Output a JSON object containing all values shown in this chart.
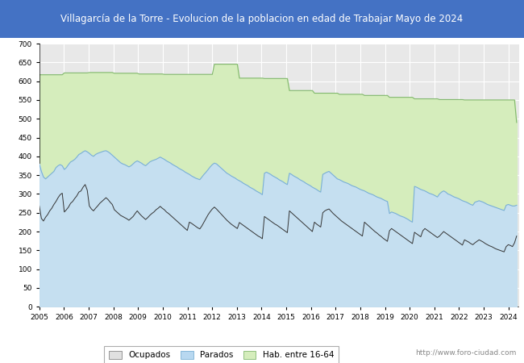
{
  "title": "Villagarcía de la Torre - Evolucion de la poblacion en edad de Trabajar Mayo de 2024",
  "title_bg_color": "#4472C4",
  "title_text_color": "white",
  "ylim": [
    0,
    700
  ],
  "yticks": [
    0,
    50,
    100,
    150,
    200,
    250,
    300,
    350,
    400,
    450,
    500,
    550,
    600,
    650,
    700
  ],
  "plot_bg_color": "#e8e8e8",
  "grid_color": "white",
  "area_hab_color": "#d5edbc",
  "area_hab_edge_color": "#82b86e",
  "area_parados_color": "#c5dff0",
  "area_parados_edge_color": "#7ab0d4",
  "line_ocupados_color": "#333333",
  "watermark": "http://www.foro-ciudad.com",
  "legend_labels": [
    "Ocupados",
    "Parados",
    "Hab. entre 16-64"
  ],
  "legend_colors": [
    "#e0e0e0",
    "#b8d8f0",
    "#d5edbc"
  ],
  "legend_edge_colors": [
    "#888888",
    "#7ab0d4",
    "#82b86e"
  ],
  "hab_data": [
    617,
    617,
    617,
    617,
    617,
    617,
    617,
    617,
    617,
    617,
    617,
    617,
    622,
    622,
    622,
    622,
    622,
    622,
    622,
    622,
    622,
    622,
    622,
    622,
    623,
    623,
    623,
    623,
    623,
    623,
    623,
    623,
    623,
    623,
    623,
    623,
    621,
    621,
    621,
    621,
    621,
    621,
    621,
    621,
    621,
    621,
    621,
    621,
    619,
    619,
    619,
    619,
    619,
    619,
    619,
    619,
    619,
    619,
    619,
    619,
    618,
    618,
    618,
    618,
    618,
    618,
    618,
    618,
    618,
    618,
    618,
    618,
    618,
    618,
    618,
    618,
    618,
    618,
    618,
    618,
    618,
    618,
    618,
    618,
    645,
    645,
    645,
    645,
    645,
    645,
    645,
    645,
    645,
    645,
    645,
    645,
    608,
    608,
    608,
    608,
    608,
    608,
    608,
    608,
    608,
    608,
    608,
    608,
    607,
    607,
    607,
    607,
    607,
    607,
    607,
    607,
    607,
    607,
    607,
    607,
    575,
    575,
    575,
    575,
    575,
    575,
    575,
    575,
    575,
    575,
    575,
    575,
    568,
    568,
    568,
    568,
    568,
    568,
    568,
    568,
    568,
    568,
    568,
    568,
    565,
    565,
    565,
    565,
    565,
    565,
    565,
    565,
    565,
    565,
    565,
    565,
    562,
    562,
    562,
    562,
    562,
    562,
    562,
    562,
    562,
    562,
    562,
    562,
    557,
    557,
    557,
    557,
    557,
    557,
    557,
    557,
    557,
    557,
    557,
    557,
    553,
    553,
    553,
    553,
    553,
    553,
    553,
    553,
    553,
    553,
    553,
    553,
    551,
    551,
    551,
    551,
    551,
    551,
    551,
    551,
    551,
    551,
    551,
    551,
    550,
    550,
    550,
    550,
    550,
    550,
    550,
    550,
    550,
    550,
    550,
    550,
    550,
    550,
    550,
    550,
    550,
    550,
    550,
    550,
    550,
    550,
    550,
    550,
    550,
    490
  ],
  "parados_data": [
    380,
    360,
    345,
    340,
    345,
    350,
    355,
    360,
    370,
    375,
    378,
    375,
    365,
    370,
    378,
    385,
    388,
    392,
    398,
    405,
    408,
    412,
    415,
    412,
    408,
    403,
    400,
    405,
    408,
    410,
    412,
    414,
    415,
    412,
    408,
    403,
    398,
    393,
    388,
    383,
    380,
    378,
    375,
    372,
    375,
    380,
    385,
    388,
    385,
    382,
    378,
    375,
    380,
    385,
    388,
    390,
    392,
    395,
    398,
    395,
    392,
    388,
    385,
    382,
    378,
    375,
    372,
    368,
    365,
    362,
    358,
    355,
    352,
    348,
    345,
    342,
    340,
    338,
    345,
    352,
    358,
    365,
    372,
    378,
    382,
    380,
    375,
    370,
    365,
    360,
    355,
    352,
    348,
    345,
    342,
    338,
    335,
    332,
    328,
    325,
    322,
    318,
    315,
    312,
    308,
    305,
    302,
    298,
    355,
    358,
    355,
    352,
    348,
    345,
    342,
    338,
    335,
    332,
    328,
    325,
    355,
    352,
    348,
    345,
    342,
    338,
    335,
    332,
    328,
    325,
    322,
    318,
    315,
    312,
    308,
    305,
    352,
    355,
    358,
    360,
    355,
    350,
    345,
    340,
    338,
    335,
    332,
    330,
    328,
    325,
    322,
    320,
    318,
    315,
    312,
    310,
    308,
    305,
    302,
    300,
    298,
    295,
    292,
    290,
    288,
    285,
    282,
    280,
    248,
    252,
    250,
    248,
    245,
    242,
    240,
    238,
    235,
    232,
    228,
    225,
    320,
    318,
    315,
    312,
    310,
    308,
    305,
    302,
    300,
    298,
    295,
    292,
    300,
    305,
    308,
    305,
    300,
    298,
    295,
    292,
    290,
    288,
    285,
    282,
    280,
    278,
    275,
    272,
    270,
    278,
    280,
    282,
    280,
    278,
    275,
    272,
    270,
    268,
    266,
    264,
    262,
    260,
    258,
    256,
    270,
    272,
    270,
    268,
    268,
    270
  ],
  "ocupados_data": [
    268,
    235,
    228,
    238,
    245,
    255,
    262,
    272,
    280,
    290,
    298,
    302,
    252,
    258,
    265,
    275,
    280,
    288,
    295,
    305,
    308,
    318,
    325,
    310,
    268,
    260,
    255,
    262,
    268,
    275,
    280,
    285,
    290,
    285,
    278,
    272,
    258,
    253,
    248,
    243,
    240,
    237,
    234,
    230,
    235,
    240,
    248,
    255,
    248,
    242,
    237,
    232,
    237,
    243,
    248,
    252,
    258,
    262,
    267,
    262,
    258,
    252,
    248,
    243,
    238,
    233,
    228,
    223,
    218,
    213,
    208,
    203,
    225,
    222,
    218,
    214,
    210,
    207,
    215,
    225,
    235,
    245,
    253,
    260,
    265,
    260,
    254,
    248,
    242,
    236,
    230,
    225,
    220,
    216,
    212,
    208,
    224,
    220,
    216,
    212,
    208,
    204,
    200,
    196,
    192,
    188,
    185,
    181,
    240,
    236,
    232,
    228,
    224,
    220,
    217,
    213,
    209,
    205,
    201,
    197,
    255,
    250,
    245,
    240,
    235,
    230,
    225,
    220,
    215,
    210,
    205,
    200,
    225,
    220,
    216,
    212,
    250,
    255,
    258,
    260,
    254,
    248,
    243,
    238,
    233,
    228,
    224,
    220,
    216,
    212,
    208,
    204,
    200,
    196,
    192,
    188,
    225,
    220,
    215,
    210,
    205,
    200,
    196,
    191,
    187,
    182,
    178,
    174,
    202,
    208,
    204,
    200,
    196,
    192,
    188,
    184,
    180,
    176,
    172,
    168,
    198,
    194,
    190,
    186,
    202,
    208,
    204,
    200,
    196,
    192,
    188,
    184,
    188,
    194,
    200,
    196,
    192,
    188,
    184,
    180,
    176,
    172,
    168,
    164,
    178,
    175,
    172,
    168,
    165,
    170,
    174,
    178,
    175,
    172,
    168,
    165,
    162,
    160,
    157,
    154,
    152,
    150,
    148,
    146,
    160,
    165,
    163,
    160,
    170,
    188
  ]
}
